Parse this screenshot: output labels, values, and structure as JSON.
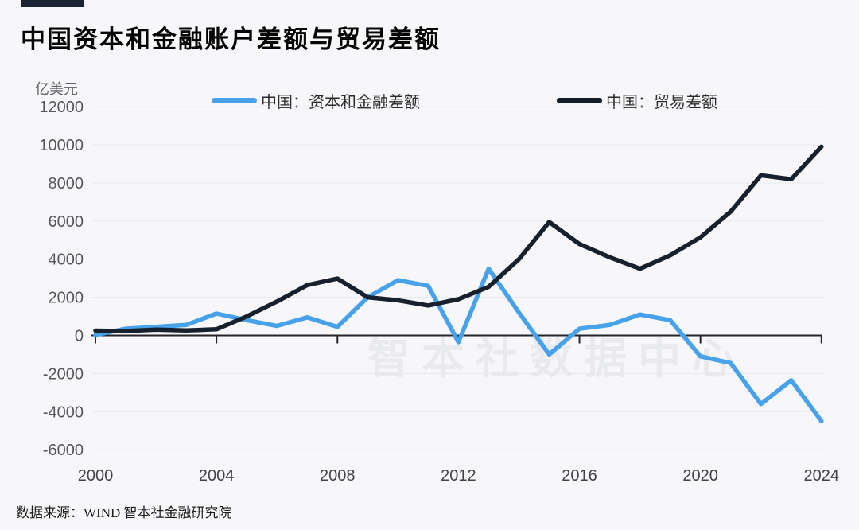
{
  "page": {
    "title": "中国资本和金融账户差额与贸易差额",
    "unit_label": "亿美元",
    "watermark": "智本社数据中心",
    "source": "数据来源：WIND 智本社金融研究院"
  },
  "colors": {
    "background": "#f7f7fa",
    "accent_bar": "#1a2433",
    "capital_series": "#47a2e9",
    "trade_series": "#16212d",
    "gridline": "#e7e8ec",
    "zero_axis": "#26262a",
    "y_tick_text": "#55565a",
    "x_tick_text": "#404247",
    "watermark": "#e9eaed"
  },
  "chart_data": {
    "type": "line",
    "title": "中国资本和金融账户差额与贸易差额",
    "xlabel": "",
    "ylabel": "亿美元",
    "ylim": [
      -6000,
      12000
    ],
    "ytick_step": 2000,
    "xticks": [
      2000,
      2004,
      2008,
      2012,
      2016,
      2020,
      2024
    ],
    "grid": "horizontal",
    "legend_position": "top",
    "x": [
      2000,
      2001,
      2002,
      2003,
      2004,
      2005,
      2006,
      2007,
      2008,
      2009,
      2010,
      2011,
      2012,
      2013,
      2014,
      2015,
      2016,
      2017,
      2018,
      2019,
      2020,
      2021,
      2022,
      2023,
      2024
    ],
    "series": [
      {
        "name": "中国：资本和金融差额",
        "color": "#47a2e9",
        "values": [
          20,
          350,
          450,
          550,
          1150,
          800,
          500,
          950,
          450,
          2000,
          2900,
          2600,
          -350,
          3500,
          1200,
          -1000,
          350,
          550,
          1100,
          800,
          -1100,
          -1450,
          -3600,
          -2350,
          -4500
        ]
      },
      {
        "name": "中国：贸易差额",
        "color": "#16212d",
        "values": [
          250,
          230,
          300,
          260,
          320,
          1000,
          1780,
          2640,
          2980,
          2000,
          1840,
          1570,
          1900,
          2550,
          4000,
          5950,
          4800,
          4100,
          3500,
          4200,
          5150,
          6500,
          8400,
          8200,
          9900
        ]
      }
    ]
  }
}
